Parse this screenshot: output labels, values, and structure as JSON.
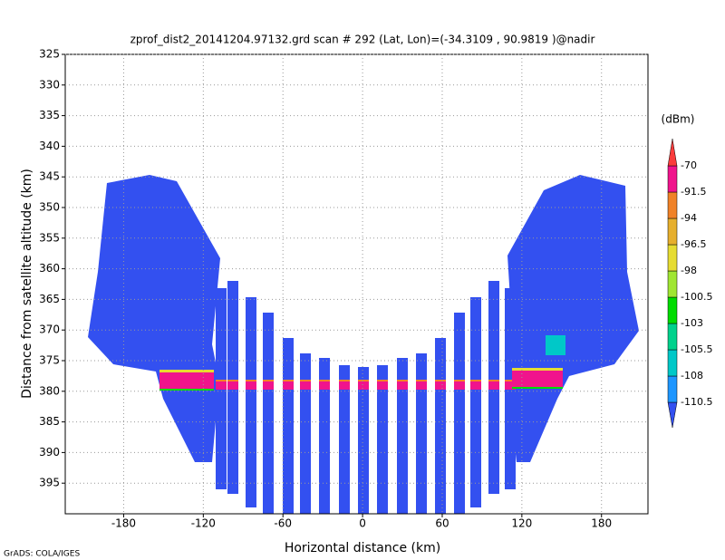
{
  "chart_data": {
    "type": "heatmap",
    "title": "zprof_dist2_20141204.97132.grd  scan # 292  (Lat, Lon)=(-34.3109 , 90.9819 )@nadir",
    "x_label": "Horizontal distance (km)",
    "y_label": "Distance from satellite altitude (km)",
    "xlim": [
      -224,
      215
    ],
    "ylim": [
      400,
      325
    ],
    "xticks": [
      -180,
      -120,
      -60,
      0,
      60,
      120,
      180
    ],
    "yticks": [
      325,
      330,
      335,
      340,
      345,
      350,
      355,
      360,
      365,
      370,
      375,
      380,
      385,
      390,
      395
    ],
    "grid": true,
    "colorbar": {
      "unit": "(dBm)",
      "levels": [
        -110.5,
        -108,
        -105.5,
        -103,
        -100.5,
        -98,
        -96.5,
        -94,
        -91.5,
        -70
      ],
      "colors": [
        "#3350f0",
        "#1e96ff",
        "#00c8c8",
        "#00d28c",
        "#00dc00",
        "#a0e632",
        "#e6dc32",
        "#e6af2d",
        "#f08228",
        "#f0148c",
        "#fa3c3c"
      ]
    },
    "footer": "GrADS: COLA/IGES"
  }
}
